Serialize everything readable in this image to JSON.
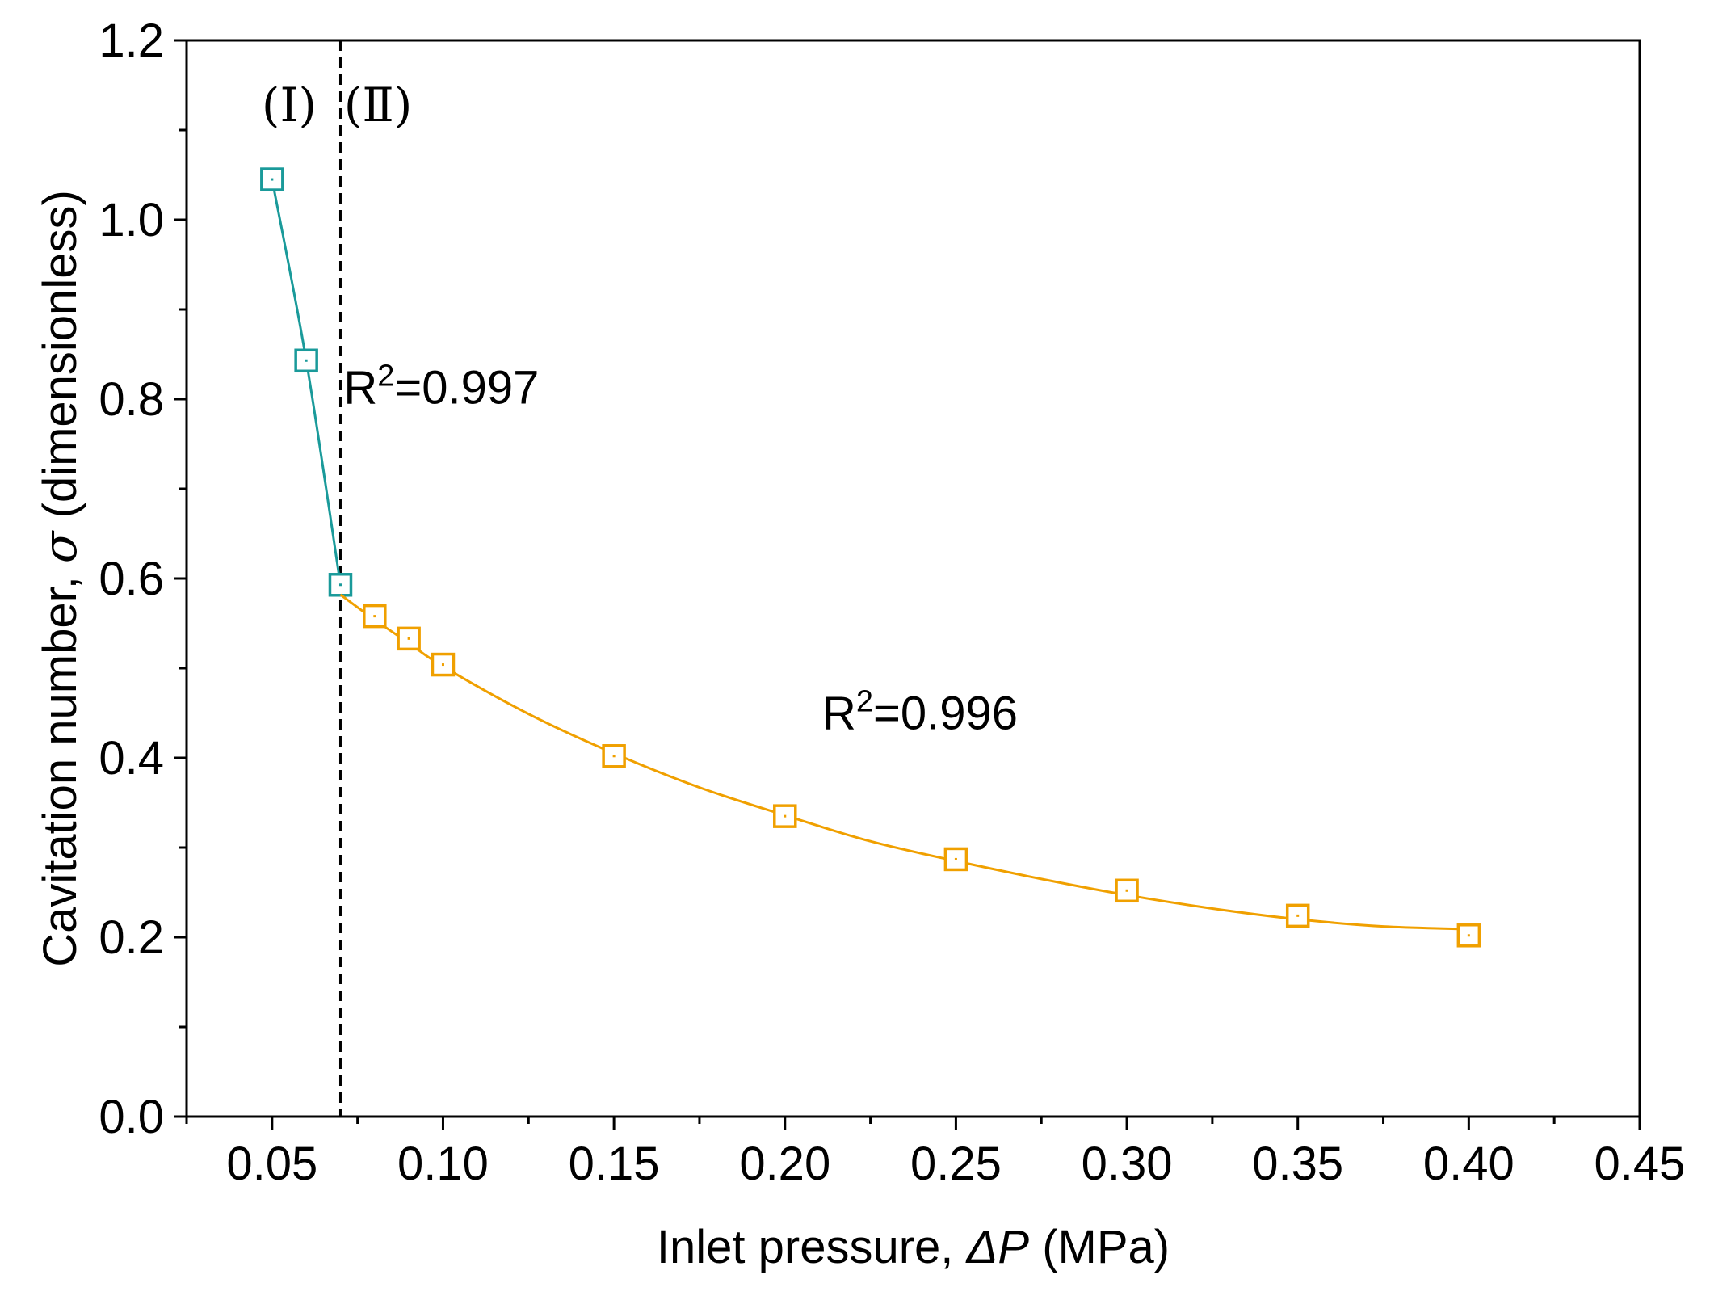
{
  "chart_data": {
    "type": "line",
    "title": "",
    "xlabel": "Inlet pressure, ",
    "xlabel_italic": "ΔP",
    "xlabel_unit": " (MPa)",
    "ylabel": "Cavitation number, ",
    "ylabel_symbol": "σ",
    "ylabel_unit": "  (dimensionless)",
    "xlim": [
      0.025,
      0.45
    ],
    "ylim": [
      0.0,
      1.2
    ],
    "x_ticks": [
      0.05,
      0.1,
      0.15,
      0.2,
      0.25,
      0.3,
      0.35,
      0.4,
      0.45
    ],
    "x_tick_labels": [
      "0.05",
      "0.10",
      "0.15",
      "0.20",
      "0.25",
      "0.30",
      "0.35",
      "0.40",
      "0.45"
    ],
    "y_ticks": [
      0.0,
      0.2,
      0.4,
      0.6,
      0.8,
      1.0,
      1.2
    ],
    "y_tick_labels": [
      "0.0",
      "0.2",
      "0.4",
      "0.6",
      "0.8",
      "1.0",
      "1.2"
    ],
    "grid": false,
    "divider_x": 0.07,
    "regions": [
      {
        "label": "(Ⅰ)",
        "anchor_x": 0.055,
        "anchor_y": 1.11
      },
      {
        "label": "(Ⅱ)",
        "anchor_x": 0.081,
        "anchor_y": 1.11
      }
    ],
    "annotations": [
      {
        "prefix": "R",
        "sup": "2",
        "suffix": "=0.997",
        "x": 0.0995,
        "y": 0.795
      },
      {
        "prefix": "R",
        "sup": "2",
        "suffix": "=0.996",
        "x": 0.2395,
        "y": 0.432
      }
    ],
    "series": [
      {
        "name": "Region I",
        "color": "#1a9a9a",
        "marker": "square",
        "x": [
          0.05,
          0.06,
          0.07
        ],
        "values": [
          1.045,
          0.843,
          0.593
        ],
        "fit_x": [
          0.05,
          0.06,
          0.07
        ],
        "fit_y": [
          1.045,
          0.843,
          0.593
        ]
      },
      {
        "name": "Region II",
        "color": "#f0a000",
        "marker": "square",
        "x": [
          0.08,
          0.09,
          0.1,
          0.15,
          0.2,
          0.25,
          0.3,
          0.35,
          0.4
        ],
        "values": [
          0.558,
          0.533,
          0.504,
          0.402,
          0.335,
          0.287,
          0.252,
          0.224,
          0.202
        ],
        "fit_x": [
          0.07,
          0.08,
          0.09,
          0.1,
          0.125,
          0.15,
          0.175,
          0.2,
          0.225,
          0.25,
          0.275,
          0.3,
          0.325,
          0.35,
          0.375,
          0.4
        ],
        "fit_y": [
          0.582,
          0.554,
          0.528,
          0.502,
          0.449,
          0.405,
          0.367,
          0.336,
          0.307,
          0.285,
          0.265,
          0.247,
          0.232,
          0.22,
          0.212,
          0.209
        ]
      }
    ]
  }
}
